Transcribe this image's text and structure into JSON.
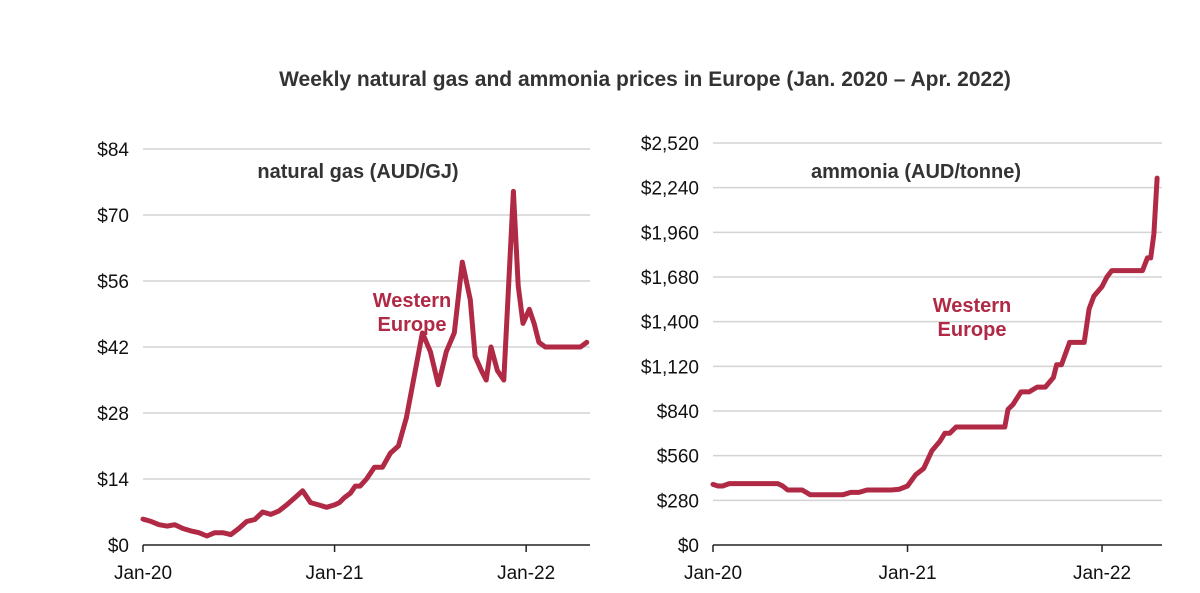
{
  "title": "Weekly natural gas and ammonia prices in Europe (Jan. 2020 – Apr. 2022)",
  "colors": {
    "series": "#B02A45",
    "grid": "#D3D3D3",
    "axis": "#222222"
  },
  "chart_data": [
    {
      "type": "line",
      "title": "natural gas (AUD/GJ)",
      "xlabel": "",
      "ylabel": "",
      "xlim": [
        0,
        28
      ],
      "ylim": [
        0,
        84
      ],
      "yticks": [
        "$0",
        "$14",
        "$28",
        "$42",
        "$56",
        "$70",
        "$84"
      ],
      "xticks": [
        {
          "x": 0,
          "label": "Jan-20"
        },
        {
          "x": 12,
          "label": "Jan-21"
        },
        {
          "x": 24,
          "label": "Jan-22"
        }
      ],
      "series": [
        {
          "name": "Western Europe",
          "label_lines": [
            "Western",
            "Europe"
          ],
          "x": [
            0,
            0.5,
            1,
            1.5,
            2,
            2.5,
            3,
            3.5,
            4,
            4.5,
            5,
            5.5,
            6,
            6.5,
            7,
            7.5,
            8,
            8.5,
            9,
            9.5,
            10,
            10.5,
            11,
            11.5,
            12,
            12.3,
            12.6,
            13,
            13.3,
            13.6,
            14,
            14.5,
            15,
            15.5,
            16,
            16.5,
            17,
            17.5,
            18,
            18.5,
            19,
            19.5,
            20,
            20.5,
            20.8,
            21.2,
            21.5,
            21.8,
            22.2,
            22.6,
            22.9,
            23.2,
            23.5,
            23.8,
            24.2,
            24.5,
            24.8,
            25.2,
            25.5,
            25.8,
            26.1,
            26.3,
            26.5,
            26.8,
            27.1,
            27.4,
            27.8
          ],
          "values": [
            5.5,
            5,
            4.3,
            4,
            4.3,
            3.5,
            3,
            2.6,
            1.9,
            2.6,
            2.6,
            2.2,
            3.5,
            5,
            5.4,
            7,
            6.5,
            7.2,
            8.5,
            10,
            11.5,
            9,
            8.5,
            8,
            8.5,
            9,
            10,
            11,
            12.5,
            12.5,
            14,
            16.5,
            16.5,
            19.5,
            21,
            27,
            36,
            45,
            41,
            34,
            41,
            45,
            60,
            52,
            40,
            37,
            35,
            42,
            37,
            35,
            55,
            75,
            55,
            47,
            50,
            47,
            43,
            42,
            42,
            42,
            42,
            42,
            42,
            42,
            42,
            42,
            43
          ]
        }
      ]
    },
    {
      "type": "line",
      "title": "ammonia (AUD/tonne)",
      "xlabel": "",
      "ylabel": "",
      "xlim": [
        0,
        27.7
      ],
      "ylim": [
        0,
        2520
      ],
      "yticks": [
        "$0",
        "$280",
        "$560",
        "$840",
        "$1,120",
        "$1,400",
        "$1,680",
        "$1,960",
        "$2,240",
        "$2,520"
      ],
      "xticks": [
        {
          "x": 0,
          "label": "Jan-20"
        },
        {
          "x": 12,
          "label": "Jan-21"
        },
        {
          "x": 24,
          "label": "Jan-22"
        }
      ],
      "series": [
        {
          "name": "Western Europe",
          "label_lines": [
            "Western",
            "Europe"
          ],
          "x": [
            0,
            0.3,
            0.6,
            1,
            1.5,
            2,
            2.5,
            3,
            3.5,
            4,
            4.3,
            4.6,
            5,
            5.5,
            6,
            6.5,
            7,
            7.5,
            8,
            8.5,
            9,
            9.5,
            10,
            10.5,
            11,
            11.5,
            12,
            12.5,
            13,
            13.5,
            14,
            14.3,
            14.6,
            15,
            15.5,
            16,
            16.5,
            17,
            17.5,
            18,
            18.2,
            18.5,
            19,
            19.5,
            20,
            20.5,
            21,
            21.2,
            21.5,
            22,
            22.3,
            22.6,
            22.9,
            23.2,
            23.5,
            24,
            24.3,
            24.6,
            25,
            25.5,
            26,
            26.2,
            26.5,
            26.8,
            27,
            27.2,
            27.4
          ],
          "values": [
            380,
            370,
            370,
            385,
            385,
            385,
            385,
            385,
            385,
            385,
            370,
            345,
            345,
            345,
            315,
            315,
            315,
            315,
            315,
            330,
            330,
            345,
            345,
            345,
            345,
            350,
            370,
            440,
            480,
            590,
            650,
            700,
            700,
            740,
            740,
            740,
            740,
            740,
            740,
            740,
            850,
            880,
            960,
            960,
            990,
            990,
            1050,
            1130,
            1130,
            1270,
            1270,
            1270,
            1270,
            1480,
            1560,
            1620,
            1680,
            1720,
            1720,
            1720,
            1720,
            1720,
            1720,
            1800,
            1800,
            1950,
            2300
          ]
        }
      ]
    }
  ]
}
